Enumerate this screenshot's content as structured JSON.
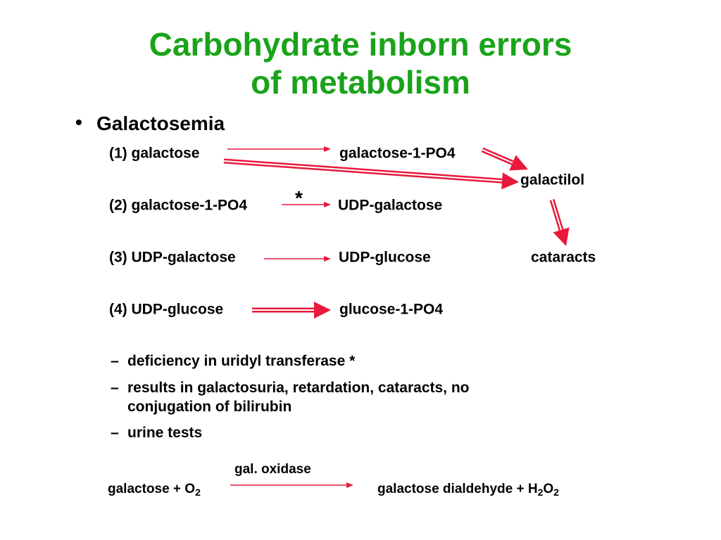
{
  "title": [
    "Carbohydrate inborn errors",
    "of metabolism"
  ],
  "bullet": "Galactosemia",
  "reactions": [
    {
      "left": "(1) galactose",
      "right": "galactose-1-PO4"
    },
    {
      "left": "(2) galactose-1-PO4",
      "mark": "*",
      "right": "UDP-galactose"
    },
    {
      "left": "(3) UDP-galactose",
      "right": "UDP-glucose"
    },
    {
      "left": "(4) UDP-glucose",
      "right": "glucose-1-PO4"
    }
  ],
  "side_products": [
    "galactilol",
    "cataracts"
  ],
  "sub_bullets": [
    "deficiency in uridyl transferase *",
    "results in galactosuria, retardation, cataracts, no conjugation of bilirubin",
    "urine tests"
  ],
  "equation": {
    "enzyme": "gal. oxidase",
    "left": [
      "galactose + O",
      "2"
    ],
    "right": [
      "galactose dialdehyde + H",
      "2",
      "O",
      "2"
    ]
  }
}
